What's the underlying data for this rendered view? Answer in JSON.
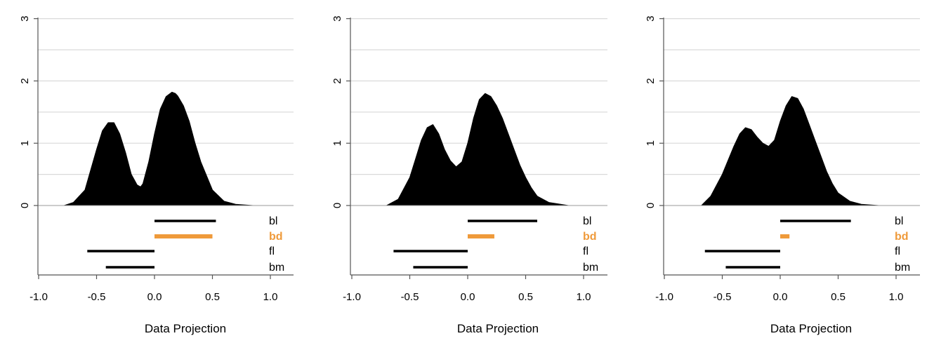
{
  "chart_data": [
    {
      "type": "area",
      "title": "",
      "xlabel": "Data Projection",
      "ylabel": "",
      "xlim": [
        -1.0,
        1.2
      ],
      "ylim": [
        0,
        3
      ],
      "x_ticks": [
        "-1.0",
        "-0.5",
        "0.0",
        "0.5",
        "1.0"
      ],
      "y_ticks": [
        "0",
        "1",
        "2",
        "3"
      ],
      "grid": "horizontal",
      "density": {
        "x": [
          -0.78,
          -0.7,
          -0.6,
          -0.5,
          -0.45,
          -0.4,
          -0.35,
          -0.3,
          -0.25,
          -0.2,
          -0.15,
          -0.12,
          -0.1,
          -0.05,
          0.0,
          0.05,
          0.1,
          0.15,
          0.18,
          0.2,
          0.25,
          0.3,
          0.35,
          0.4,
          0.5,
          0.6,
          0.7,
          0.85
        ],
        "y": [
          0.0,
          0.05,
          0.25,
          0.9,
          1.2,
          1.33,
          1.33,
          1.15,
          0.85,
          0.5,
          0.33,
          0.3,
          0.35,
          0.7,
          1.15,
          1.55,
          1.75,
          1.82,
          1.8,
          1.76,
          1.6,
          1.35,
          1.0,
          0.7,
          0.25,
          0.07,
          0.02,
          0.0
        ]
      },
      "intervals": [
        {
          "name": "bl",
          "start": 0.0,
          "end": 0.53,
          "color": "#000000"
        },
        {
          "name": "bd",
          "start": 0.0,
          "end": 0.5,
          "color": "#ef9a3a"
        },
        {
          "name": "fl",
          "start": -0.58,
          "end": 0.0,
          "color": "#000000"
        },
        {
          "name": "bm",
          "start": -0.42,
          "end": 0.0,
          "color": "#000000"
        }
      ]
    },
    {
      "type": "area",
      "title": "",
      "xlabel": "Data Projection",
      "ylabel": "",
      "xlim": [
        -1.0,
        1.2
      ],
      "ylim": [
        0,
        3
      ],
      "x_ticks": [
        "-1.0",
        "-0.5",
        "0.0",
        "0.5",
        "1.0"
      ],
      "y_ticks": [
        "0",
        "1",
        "2",
        "3"
      ],
      "grid": "horizontal",
      "density": {
        "x": [
          -0.7,
          -0.6,
          -0.5,
          -0.45,
          -0.4,
          -0.35,
          -0.3,
          -0.25,
          -0.2,
          -0.15,
          -0.1,
          -0.05,
          0.0,
          0.05,
          0.1,
          0.15,
          0.2,
          0.25,
          0.3,
          0.35,
          0.4,
          0.45,
          0.5,
          0.55,
          0.6,
          0.7,
          0.87
        ],
        "y": [
          0.0,
          0.1,
          0.45,
          0.75,
          1.05,
          1.25,
          1.3,
          1.15,
          0.9,
          0.72,
          0.62,
          0.7,
          1.0,
          1.4,
          1.7,
          1.8,
          1.75,
          1.6,
          1.4,
          1.15,
          0.9,
          0.65,
          0.45,
          0.28,
          0.15,
          0.05,
          0.0
        ]
      },
      "intervals": [
        {
          "name": "bl",
          "start": 0.0,
          "end": 0.6,
          "color": "#000000"
        },
        {
          "name": "bd",
          "start": 0.0,
          "end": 0.23,
          "color": "#ef9a3a"
        },
        {
          "name": "fl",
          "start": -0.64,
          "end": 0.0,
          "color": "#000000"
        },
        {
          "name": "bm",
          "start": -0.47,
          "end": 0.0,
          "color": "#000000"
        }
      ]
    },
    {
      "type": "area",
      "title": "",
      "xlabel": "Data Projection",
      "ylabel": "",
      "xlim": [
        -1.0,
        1.2
      ],
      "ylim": [
        0,
        3
      ],
      "x_ticks": [
        "-1.0",
        "-0.5",
        "0.0",
        "0.5",
        "1.0"
      ],
      "y_ticks": [
        "0",
        "1",
        "2",
        "3"
      ],
      "grid": "horizontal",
      "density": {
        "x": [
          -0.68,
          -0.6,
          -0.5,
          -0.4,
          -0.35,
          -0.3,
          -0.25,
          -0.2,
          -0.15,
          -0.1,
          -0.05,
          0.0,
          0.05,
          0.1,
          0.15,
          0.2,
          0.25,
          0.3,
          0.35,
          0.4,
          0.45,
          0.5,
          0.6,
          0.7,
          0.85
        ],
        "y": [
          0.0,
          0.15,
          0.5,
          0.95,
          1.15,
          1.25,
          1.22,
          1.1,
          1.0,
          0.95,
          1.05,
          1.35,
          1.6,
          1.75,
          1.72,
          1.55,
          1.3,
          1.05,
          0.8,
          0.55,
          0.35,
          0.2,
          0.07,
          0.02,
          0.0
        ]
      },
      "intervals": [
        {
          "name": "bl",
          "start": 0.0,
          "end": 0.61,
          "color": "#000000"
        },
        {
          "name": "bd",
          "start": 0.0,
          "end": 0.08,
          "color": "#ef9a3a"
        },
        {
          "name": "fl",
          "start": -0.65,
          "end": 0.0,
          "color": "#000000"
        },
        {
          "name": "bm",
          "start": -0.47,
          "end": 0.0,
          "color": "#000000"
        }
      ]
    }
  ]
}
